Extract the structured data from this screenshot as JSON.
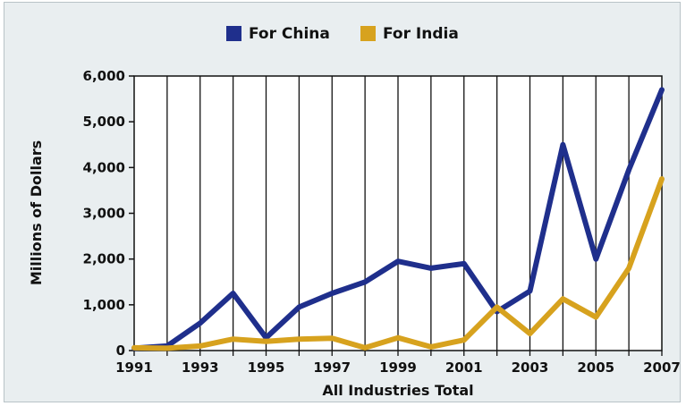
{
  "chart_data": {
    "type": "line",
    "title": "",
    "xlabel": "All Industries Total",
    "ylabel": "Millions of Dollars",
    "x": [
      1991,
      1992,
      1993,
      1994,
      1995,
      1996,
      1997,
      1998,
      1999,
      2000,
      2001,
      2002,
      2003,
      2004,
      2005,
      2006,
      2007
    ],
    "x_tick_labels": [
      "1991",
      "1993",
      "1995",
      "1997",
      "1999",
      "2001",
      "2003",
      "2005",
      "2007"
    ],
    "y_tick_labels": [
      "0",
      "1,000",
      "2,000",
      "3,000",
      "4,000",
      "5,000",
      "6,000"
    ],
    "ylim": [
      0,
      6000
    ],
    "xlim": [
      1991,
      2007
    ],
    "grid": "vertical",
    "legend_position": "top",
    "series": [
      {
        "name": "For China",
        "color": "#1f2f8c",
        "values": [
          50,
          100,
          600,
          1250,
          280,
          950,
          1250,
          1500,
          1950,
          1800,
          1900,
          850,
          1300,
          4500,
          2000,
          3950,
          5700
        ]
      },
      {
        "name": "For India",
        "color": "#d7a21e",
        "values": [
          60,
          50,
          100,
          250,
          200,
          250,
          270,
          60,
          280,
          80,
          230,
          950,
          370,
          1130,
          730,
          1800,
          3750
        ]
      }
    ]
  }
}
